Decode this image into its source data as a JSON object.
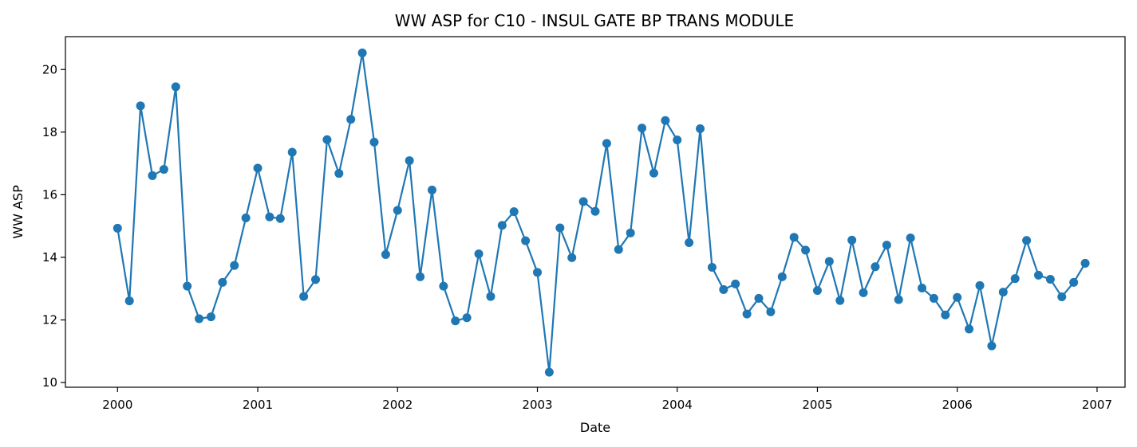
{
  "chart_data": {
    "type": "line",
    "title": "WW ASP for C10 - INSUL GATE BP TRANS MODULE",
    "xlabel": "Date",
    "ylabel": "WW ASP",
    "xlim": [
      "1999-08-18",
      "2007-03-15"
    ],
    "ylim": [
      9.85,
      21.05
    ],
    "x_ticks": [
      "2000",
      "2001",
      "2002",
      "2003",
      "2004",
      "2005",
      "2006",
      "2007"
    ],
    "y_ticks": [
      "10",
      "12",
      "14",
      "16",
      "18",
      "20"
    ],
    "grid": false,
    "color": "#1f77b4",
    "markers": true,
    "series": [
      {
        "x": [
          "2000-01-01",
          "2000-02-01",
          "2000-03-01",
          "2000-04-01",
          "2000-05-01",
          "2000-06-01",
          "2000-07-01",
          "2000-08-01",
          "2000-09-01",
          "2000-10-01",
          "2000-11-01",
          "2000-12-01",
          "2001-01-01",
          "2001-02-01",
          "2001-03-01",
          "2001-04-01",
          "2001-05-01",
          "2001-06-01",
          "2001-07-01",
          "2001-08-01",
          "2001-09-01",
          "2001-10-01",
          "2001-11-01",
          "2001-12-01",
          "2002-01-01",
          "2002-02-01",
          "2002-03-01",
          "2002-04-01",
          "2002-05-01",
          "2002-06-01",
          "2002-07-01",
          "2002-08-01",
          "2002-09-01",
          "2002-10-01",
          "2002-11-01",
          "2002-12-01",
          "2003-01-01",
          "2003-02-01",
          "2003-03-01",
          "2003-04-01",
          "2003-05-01",
          "2003-06-01",
          "2003-07-01",
          "2003-08-01",
          "2003-09-01",
          "2003-10-01",
          "2003-11-01",
          "2003-12-01",
          "2004-01-01",
          "2004-02-01",
          "2004-03-01",
          "2004-04-01",
          "2004-05-01",
          "2004-06-01",
          "2004-07-01",
          "2004-08-01",
          "2004-09-01",
          "2004-10-01",
          "2004-11-01",
          "2004-12-01",
          "2005-01-01",
          "2005-02-01",
          "2005-03-01",
          "2005-04-01",
          "2005-05-01",
          "2005-06-01",
          "2005-07-01",
          "2005-08-01",
          "2005-09-01",
          "2005-10-01",
          "2005-11-01",
          "2005-12-01",
          "2006-01-01",
          "2006-02-01",
          "2006-03-01",
          "2006-04-01",
          "2006-05-01",
          "2006-06-01",
          "2006-07-01",
          "2006-08-01",
          "2006-09-01",
          "2006-10-01",
          "2006-11-01",
          "2006-12-01"
        ],
        "y": [
          14.93,
          12.61,
          18.84,
          16.61,
          16.81,
          19.45,
          13.08,
          12.04,
          12.1,
          13.2,
          13.74,
          15.26,
          16.85,
          15.29,
          15.24,
          17.36,
          12.75,
          13.29,
          17.76,
          16.68,
          18.41,
          20.53,
          17.68,
          14.09,
          15.5,
          17.09,
          13.38,
          16.15,
          13.08,
          11.97,
          12.07,
          14.11,
          12.75,
          15.02,
          15.46,
          14.53,
          13.52,
          10.33,
          14.94,
          13.99,
          15.78,
          15.47,
          17.64,
          14.25,
          14.78,
          18.13,
          16.69,
          18.37,
          17.75,
          14.47,
          18.11,
          13.68,
          12.97,
          13.15,
          12.19,
          12.69,
          12.26,
          13.38,
          14.64,
          14.23,
          12.94,
          13.87,
          12.62,
          14.55,
          12.87,
          13.7,
          14.39,
          12.65,
          14.62,
          13.02,
          12.69,
          12.16,
          12.72,
          11.71,
          13.1,
          11.17,
          12.89,
          13.32,
          14.54,
          13.43,
          13.3,
          12.74,
          13.2,
          13.81
        ]
      }
    ]
  }
}
